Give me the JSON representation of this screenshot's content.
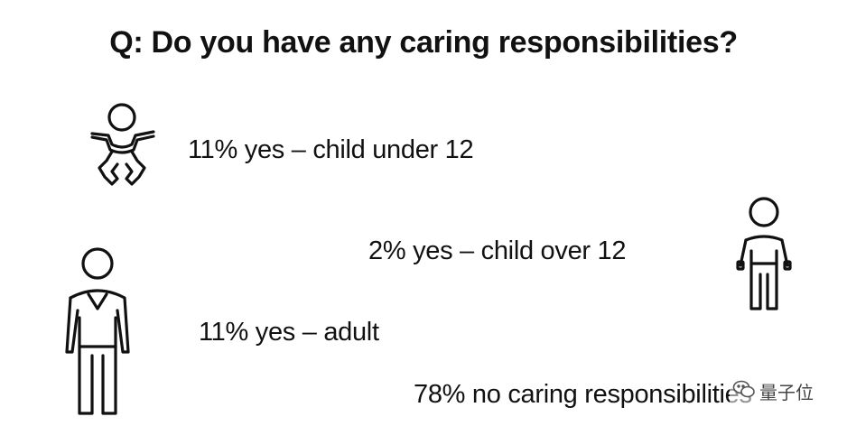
{
  "title": "Q: Do you have any caring responsibilities?",
  "stats": {
    "child_under_12": "11% yes – child under 12",
    "child_over_12": "2% yes – child over 12",
    "adult": "11% yes – adult",
    "none": "78% no caring responsibilities"
  },
  "icons": {
    "baby": "baby-icon",
    "child": "child-icon",
    "adult": "adult-icon",
    "watermark": "wechat-icon"
  },
  "watermark": "量子位",
  "colors": {
    "ink": "#111111",
    "background": "#ffffff"
  }
}
